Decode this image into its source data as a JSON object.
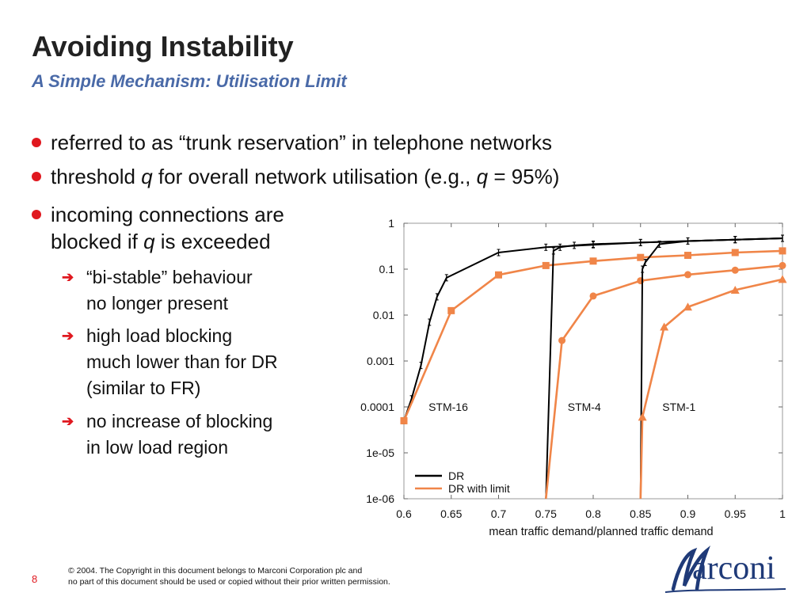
{
  "slide": {
    "title": "Avoiding Instability",
    "subtitle": "A Simple Mechanism: Utilisation Limit",
    "page_number": "8",
    "copyright_line1": "© 2004. The Copyright in this document belongs to Marconi Corporation plc and",
    "copyright_line2": "no part of this document should be used or copied without their prior written permission.",
    "logo_text": "arconi",
    "logo_initial": "M"
  },
  "bullets": {
    "b1": "referred to as “trunk reservation” in telephone networks",
    "b2_pre": "threshold ",
    "b2_q1": "q",
    "b2_mid": " for overall network utilisation (e.g., ",
    "b2_q2": "q",
    "b2_post": " = 95%)",
    "b3_line1": "incoming connections are",
    "b3_pre": "blocked if ",
    "b3_q": "q",
    "b3_post": " is exceeded",
    "sub1_l1": "“bi-stable” behaviour",
    "sub1_l2": "no longer present",
    "sub2_l1": "high load blocking",
    "sub2_l2": "much lower than for DR",
    "sub2_l3": "(similar to FR)",
    "sub3_l1": "no increase of blocking",
    "sub3_l2": "in low load region"
  },
  "colors": {
    "accent_red": "#e0181f",
    "subtitle_blue": "#4a6aa8",
    "dr_color": "#000000",
    "limit_color": "#f08548",
    "logo_blue": "#1f3a78"
  },
  "icons": {
    "bullet": "red-dot-icon",
    "sub_bullet": "red-arrow-icon"
  },
  "chart_data": {
    "type": "line",
    "xlabel": "mean traffic demand/planned traffic demand",
    "ylabel": "",
    "yscale": "log",
    "xlim": [
      0.6,
      1.0
    ],
    "ylim": [
      1e-06,
      1
    ],
    "x_ticks": [
      "0.6",
      "0.65",
      "0.7",
      "0.75",
      "0.8",
      "0.85",
      "0.9",
      "0.95",
      "1"
    ],
    "y_ticks": [
      "1",
      "0.1",
      "0.01",
      "0.001",
      "0.0001",
      "1e-05",
      "1e-06"
    ],
    "annotations": [
      "STM-16",
      "STM-4",
      "STM-1"
    ],
    "legend": {
      "position": "bottom-left",
      "entries": [
        "DR",
        "DR with limit"
      ]
    },
    "series": [
      {
        "name": "DR",
        "group": "STM-16",
        "x": [
          0.6,
          0.608,
          0.618,
          0.627,
          0.635,
          0.645,
          0.7,
          0.75,
          0.8,
          0.85,
          0.9,
          0.95,
          1.0
        ],
        "y": [
          5e-05,
          0.00015,
          0.0008,
          0.007,
          0.025,
          0.065,
          0.23,
          0.3,
          0.34,
          0.38,
          0.41,
          0.44,
          0.47
        ]
      },
      {
        "name": "DR with limit",
        "group": "STM-16",
        "x": [
          0.6,
          0.65,
          0.7,
          0.75,
          0.8,
          0.85,
          0.9,
          0.95,
          1.0
        ],
        "y": [
          5e-05,
          0.0125,
          0.075,
          0.12,
          0.15,
          0.18,
          0.2,
          0.23,
          0.25
        ]
      },
      {
        "name": "DR",
        "group": "STM-4",
        "x": [
          0.75,
          0.758,
          0.765,
          0.78,
          0.8,
          0.85,
          0.9,
          0.95,
          1.0
        ],
        "y": [
          1e-06,
          0.25,
          0.3,
          0.33,
          0.35,
          0.38,
          0.41,
          0.44,
          0.47
        ]
      },
      {
        "name": "DR with limit",
        "group": "STM-4",
        "x": [
          0.75,
          0.767,
          0.8,
          0.85,
          0.9,
          0.95,
          1.0
        ],
        "y": [
          1e-06,
          0.0028,
          0.026,
          0.056,
          0.076,
          0.095,
          0.12
        ]
      },
      {
        "name": "DR",
        "group": "STM-1",
        "x": [
          0.85,
          0.852,
          0.855,
          0.87,
          0.9,
          0.95,
          1.0
        ],
        "y": [
          1e-06,
          0.1,
          0.14,
          0.35,
          0.41,
          0.44,
          0.47
        ]
      },
      {
        "name": "DR with limit",
        "group": "STM-1",
        "x": [
          0.85,
          0.852,
          0.875,
          0.9,
          0.95,
          1.0
        ],
        "y": [
          1e-06,
          6e-05,
          0.0055,
          0.015,
          0.035,
          0.06
        ]
      }
    ]
  }
}
